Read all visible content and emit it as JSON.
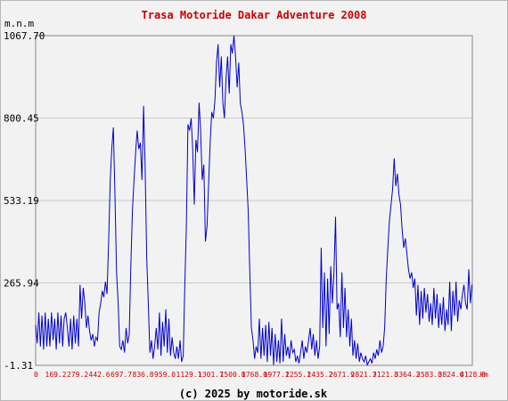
{
  "chart_data": {
    "type": "line",
    "title": "Trasa Motoride Dakar Adventure 2008",
    "ylabel": "m.n.m",
    "xunit": "km",
    "footer": "(c) 2025 by motoride.sk",
    "ylim": [
      -1.31,
      1067.7
    ],
    "xlim": [
      0,
      4128.8
    ],
    "y_ticks": [
      -1.31,
      265.94,
      533.19,
      800.45,
      1067.7
    ],
    "y_tick_labels": [
      "-1.31",
      "265.94",
      "533.19",
      "800.45",
      "1067.70"
    ],
    "x_ticks": [
      0,
      169.2,
      279.2,
      442.6,
      697.7,
      836.8,
      959.0,
      1129.1,
      1301.7,
      1500.8,
      1768.0,
      1977.1,
      2255.1,
      2435.2,
      2671.9,
      2821.7,
      3121.8,
      3364.2,
      3583.8,
      3824.0,
      4128.8
    ],
    "x_tick_labels": [
      "0",
      "169.2",
      "279.2",
      "442.6",
      "697.7",
      "836.8",
      "959.0",
      "1129.1",
      "1301.7",
      "1500.8",
      "1768.0",
      "1977.1",
      "2255.1",
      "2435.2",
      "2671.9",
      "2821.7",
      "3121.8",
      "3364.2",
      "3583.8",
      "3824.0",
      "4128.8"
    ],
    "grid": true,
    "line_color": "#0000cc",
    "title_color": "#cc0000",
    "x_tick_color": "#cc0000",
    "profile": [
      [
        0,
        130
      ],
      [
        15,
        70
      ],
      [
        30,
        170
      ],
      [
        45,
        60
      ],
      [
        60,
        160
      ],
      [
        75,
        50
      ],
      [
        90,
        170
      ],
      [
        105,
        60
      ],
      [
        120,
        150
      ],
      [
        135,
        60
      ],
      [
        150,
        170
      ],
      [
        165,
        80
      ],
      [
        180,
        150
      ],
      [
        195,
        50
      ],
      [
        210,
        170
      ],
      [
        225,
        70
      ],
      [
        240,
        160
      ],
      [
        255,
        60
      ],
      [
        270,
        150
      ],
      [
        285,
        170
      ],
      [
        300,
        120
      ],
      [
        315,
        60
      ],
      [
        330,
        150
      ],
      [
        345,
        50
      ],
      [
        360,
        160
      ],
      [
        375,
        70
      ],
      [
        390,
        150
      ],
      [
        405,
        60
      ],
      [
        420,
        260
      ],
      [
        435,
        150
      ],
      [
        450,
        250
      ],
      [
        465,
        200
      ],
      [
        480,
        120
      ],
      [
        495,
        160
      ],
      [
        510,
        110
      ],
      [
        525,
        80
      ],
      [
        540,
        100
      ],
      [
        555,
        60
      ],
      [
        570,
        90
      ],
      [
        585,
        80
      ],
      [
        600,
        170
      ],
      [
        615,
        200
      ],
      [
        630,
        240
      ],
      [
        645,
        220
      ],
      [
        660,
        270
      ],
      [
        675,
        230
      ],
      [
        690,
        400
      ],
      [
        705,
        600
      ],
      [
        720,
        700
      ],
      [
        735,
        770
      ],
      [
        750,
        550
      ],
      [
        765,
        300
      ],
      [
        780,
        200
      ],
      [
        795,
        60
      ],
      [
        810,
        50
      ],
      [
        825,
        80
      ],
      [
        840,
        40
      ],
      [
        855,
        120
      ],
      [
        870,
        70
      ],
      [
        885,
        100
      ],
      [
        900,
        320
      ],
      [
        915,
        500
      ],
      [
        930,
        600
      ],
      [
        945,
        690
      ],
      [
        960,
        760
      ],
      [
        975,
        700
      ],
      [
        990,
        720
      ],
      [
        1005,
        600
      ],
      [
        1020,
        840
      ],
      [
        1035,
        650
      ],
      [
        1050,
        350
      ],
      [
        1065,
        200
      ],
      [
        1080,
        40
      ],
      [
        1095,
        80
      ],
      [
        1110,
        20
      ],
      [
        1125,
        60
      ],
      [
        1140,
        120
      ],
      [
        1155,
        50
      ],
      [
        1170,
        170
      ],
      [
        1185,
        30
      ],
      [
        1200,
        140
      ],
      [
        1215,
        60
      ],
      [
        1230,
        180
      ],
      [
        1245,
        40
      ],
      [
        1260,
        150
      ],
      [
        1275,
        30
      ],
      [
        1290,
        90
      ],
      [
        1305,
        40
      ],
      [
        1320,
        20
      ],
      [
        1335,
        60
      ],
      [
        1350,
        20
      ],
      [
        1365,
        80
      ],
      [
        1380,
        10
      ],
      [
        1395,
        30
      ],
      [
        1410,
        250
      ],
      [
        1425,
        450
      ],
      [
        1440,
        780
      ],
      [
        1455,
        760
      ],
      [
        1470,
        800
      ],
      [
        1485,
        700
      ],
      [
        1500,
        520
      ],
      [
        1515,
        730
      ],
      [
        1530,
        690
      ],
      [
        1545,
        850
      ],
      [
        1560,
        760
      ],
      [
        1575,
        600
      ],
      [
        1590,
        650
      ],
      [
        1605,
        400
      ],
      [
        1620,
        450
      ],
      [
        1635,
        580
      ],
      [
        1650,
        720
      ],
      [
        1665,
        820
      ],
      [
        1680,
        800
      ],
      [
        1695,
        860
      ],
      [
        1710,
        980
      ],
      [
        1725,
        1040
      ],
      [
        1740,
        900
      ],
      [
        1755,
        1000
      ],
      [
        1770,
        850
      ],
      [
        1785,
        800
      ],
      [
        1800,
        930
      ],
      [
        1815,
        1000
      ],
      [
        1830,
        880
      ],
      [
        1845,
        1040
      ],
      [
        1860,
        1010
      ],
      [
        1875,
        1068
      ],
      [
        1890,
        1000
      ],
      [
        1905,
        900
      ],
      [
        1920,
        980
      ],
      [
        1935,
        850
      ],
      [
        1950,
        820
      ],
      [
        1965,
        780
      ],
      [
        1980,
        700
      ],
      [
        1995,
        600
      ],
      [
        2010,
        500
      ],
      [
        2025,
        300
      ],
      [
        2040,
        120
      ],
      [
        2055,
        80
      ],
      [
        2070,
        20
      ],
      [
        2085,
        60
      ],
      [
        2100,
        40
      ],
      [
        2115,
        150
      ],
      [
        2130,
        20
      ],
      [
        2145,
        120
      ],
      [
        2160,
        30
      ],
      [
        2175,
        130
      ],
      [
        2190,
        10
      ],
      [
        2205,
        140
      ],
      [
        2220,
        30
      ],
      [
        2235,
        120
      ],
      [
        2250,
        0
      ],
      [
        2265,
        100
      ],
      [
        2280,
        10
      ],
      [
        2295,
        80
      ],
      [
        2310,
        5
      ],
      [
        2325,
        150
      ],
      [
        2340,
        10
      ],
      [
        2355,
        100
      ],
      [
        2370,
        30
      ],
      [
        2385,
        60
      ],
      [
        2400,
        20
      ],
      [
        2415,
        80
      ],
      [
        2430,
        40
      ],
      [
        2445,
        50
      ],
      [
        2460,
        10
      ],
      [
        2475,
        30
      ],
      [
        2490,
        5
      ],
      [
        2505,
        40
      ],
      [
        2520,
        80
      ],
      [
        2535,
        20
      ],
      [
        2550,
        60
      ],
      [
        2565,
        40
      ],
      [
        2580,
        80
      ],
      [
        2595,
        120
      ],
      [
        2610,
        50
      ],
      [
        2625,
        100
      ],
      [
        2640,
        30
      ],
      [
        2655,
        80
      ],
      [
        2670,
        20
      ],
      [
        2685,
        60
      ],
      [
        2700,
        380
      ],
      [
        2715,
        120
      ],
      [
        2730,
        300
      ],
      [
        2745,
        60
      ],
      [
        2760,
        280
      ],
      [
        2775,
        100
      ],
      [
        2790,
        320
      ],
      [
        2805,
        200
      ],
      [
        2820,
        300
      ],
      [
        2835,
        480
      ],
      [
        2850,
        180
      ],
      [
        2865,
        200
      ],
      [
        2880,
        90
      ],
      [
        2895,
        300
      ],
      [
        2910,
        120
      ],
      [
        2925,
        250
      ],
      [
        2940,
        90
      ],
      [
        2955,
        180
      ],
      [
        2970,
        60
      ],
      [
        2985,
        150
      ],
      [
        3000,
        30
      ],
      [
        3015,
        80
      ],
      [
        3030,
        20
      ],
      [
        3045,
        70
      ],
      [
        3060,
        10
      ],
      [
        3075,
        40
      ],
      [
        3090,
        20
      ],
      [
        3105,
        10
      ],
      [
        3120,
        30
      ],
      [
        3135,
        0
      ],
      [
        3150,
        10
      ],
      [
        3165,
        20
      ],
      [
        3180,
        5
      ],
      [
        3195,
        40
      ],
      [
        3210,
        20
      ],
      [
        3225,
        50
      ],
      [
        3240,
        30
      ],
      [
        3255,
        80
      ],
      [
        3270,
        40
      ],
      [
        3285,
        60
      ],
      [
        3300,
        120
      ],
      [
        3315,
        280
      ],
      [
        3330,
        380
      ],
      [
        3345,
        470
      ],
      [
        3360,
        520
      ],
      [
        3375,
        570
      ],
      [
        3390,
        670
      ],
      [
        3405,
        580
      ],
      [
        3420,
        620
      ],
      [
        3435,
        550
      ],
      [
        3450,
        520
      ],
      [
        3465,
        440
      ],
      [
        3480,
        380
      ],
      [
        3495,
        410
      ],
      [
        3510,
        360
      ],
      [
        3525,
        310
      ],
      [
        3540,
        280
      ],
      [
        3555,
        300
      ],
      [
        3570,
        250
      ],
      [
        3585,
        280
      ],
      [
        3600,
        160
      ],
      [
        3615,
        260
      ],
      [
        3630,
        130
      ],
      [
        3645,
        240
      ],
      [
        3660,
        150
      ],
      [
        3675,
        250
      ],
      [
        3690,
        170
      ],
      [
        3705,
        230
      ],
      [
        3720,
        140
      ],
      [
        3735,
        200
      ],
      [
        3750,
        130
      ],
      [
        3765,
        250
      ],
      [
        3780,
        150
      ],
      [
        3795,
        230
      ],
      [
        3810,
        120
      ],
      [
        3825,
        200
      ],
      [
        3840,
        130
      ],
      [
        3855,
        220
      ],
      [
        3870,
        110
      ],
      [
        3885,
        180
      ],
      [
        3900,
        130
      ],
      [
        3915,
        270
      ],
      [
        3930,
        110
      ],
      [
        3945,
        240
      ],
      [
        3960,
        160
      ],
      [
        3975,
        270
      ],
      [
        3990,
        140
      ],
      [
        4005,
        210
      ],
      [
        4020,
        180
      ],
      [
        4035,
        230
      ],
      [
        4050,
        260
      ],
      [
        4065,
        200
      ],
      [
        4080,
        180
      ],
      [
        4095,
        310
      ],
      [
        4110,
        200
      ],
      [
        4125,
        260
      ]
    ]
  }
}
